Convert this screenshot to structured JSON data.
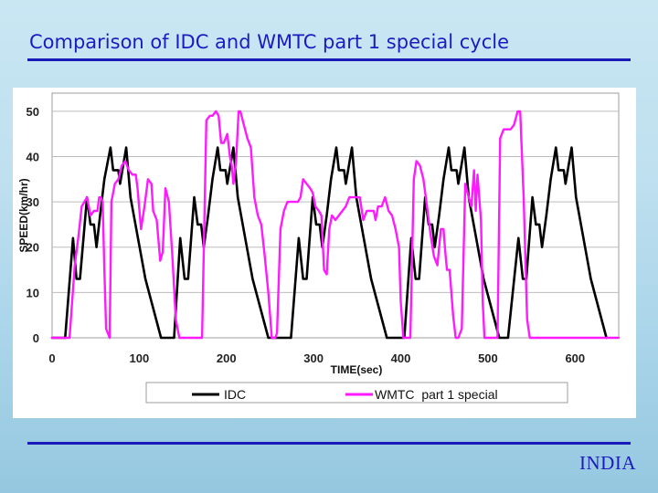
{
  "slide": {
    "title": "Comparison of IDC and WMTC part 1 special cycle",
    "footer": "INDIA"
  },
  "colors": {
    "title": "#1b1bc0",
    "idc": "#000000",
    "wmtc": "#ff1aff",
    "plot_bg": "#ffffff",
    "grid": "#bdbdbd"
  },
  "chart_data": {
    "type": "line",
    "title": "",
    "xlabel": "TIME(sec)",
    "ylabel": "SPEED(km/hr)",
    "xlim": [
      0,
      650
    ],
    "ylim": [
      0,
      54
    ],
    "xticks": [
      0,
      100,
      200,
      300,
      400,
      500,
      600
    ],
    "yticks": [
      0,
      10,
      20,
      30,
      40,
      50
    ],
    "grid": true,
    "legend_position": "bottom",
    "series": [
      {
        "name": "IDC",
        "color": "#000000",
        "points": [
          [
            0,
            0
          ],
          [
            15,
            0
          ],
          [
            24,
            22
          ],
          [
            28,
            13
          ],
          [
            32,
            13
          ],
          [
            40,
            31
          ],
          [
            44,
            25
          ],
          [
            48,
            25
          ],
          [
            51,
            20
          ],
          [
            55,
            27
          ],
          [
            60,
            35
          ],
          [
            67,
            42
          ],
          [
            70,
            37
          ],
          [
            76,
            37
          ],
          [
            78,
            34
          ],
          [
            85,
            42
          ],
          [
            90,
            31
          ],
          [
            107,
            13
          ],
          [
            125,
            0
          ],
          [
            130,
            0
          ],
          [
            140,
            0
          ],
          [
            147,
            22
          ],
          [
            152,
            13
          ],
          [
            156,
            13
          ],
          [
            163,
            31
          ],
          [
            167,
            25
          ],
          [
            171,
            25
          ],
          [
            174,
            20
          ],
          [
            179,
            27
          ],
          [
            184,
            35
          ],
          [
            190,
            42
          ],
          [
            193,
            37
          ],
          [
            199,
            37
          ],
          [
            201,
            34
          ],
          [
            208,
            42
          ],
          [
            213,
            31
          ],
          [
            230,
            13
          ],
          [
            248,
            0
          ],
          [
            262,
            0
          ],
          [
            274,
            0
          ],
          [
            283,
            22
          ],
          [
            288,
            13
          ],
          [
            292,
            13
          ],
          [
            299,
            31
          ],
          [
            303,
            25
          ],
          [
            307,
            25
          ],
          [
            310,
            20
          ],
          [
            315,
            27
          ],
          [
            320,
            35
          ],
          [
            326,
            42
          ],
          [
            329,
            37
          ],
          [
            335,
            37
          ],
          [
            337,
            34
          ],
          [
            344,
            42
          ],
          [
            349,
            31
          ],
          [
            366,
            13
          ],
          [
            384,
            0
          ],
          [
            395,
            0
          ],
          [
            404,
            0
          ],
          [
            412,
            22
          ],
          [
            417,
            13
          ],
          [
            421,
            13
          ],
          [
            428,
            31
          ],
          [
            432,
            25
          ],
          [
            436,
            25
          ],
          [
            439,
            20
          ],
          [
            444,
            27
          ],
          [
            449,
            35
          ],
          [
            455,
            42
          ],
          [
            458,
            37
          ],
          [
            464,
            37
          ],
          [
            466,
            34
          ],
          [
            473,
            42
          ],
          [
            478,
            31
          ],
          [
            495,
            13
          ],
          [
            513,
            0
          ],
          [
            517,
            0
          ],
          [
            523,
            0
          ],
          [
            535,
            22
          ],
          [
            540,
            13
          ],
          [
            544,
            13
          ],
          [
            551,
            31
          ],
          [
            555,
            25
          ],
          [
            559,
            25
          ],
          [
            562,
            20
          ],
          [
            567,
            27
          ],
          [
            572,
            35
          ],
          [
            578,
            42
          ],
          [
            581,
            37
          ],
          [
            587,
            37
          ],
          [
            589,
            34
          ],
          [
            596,
            42
          ],
          [
            601,
            31
          ],
          [
            618,
            13
          ],
          [
            636,
            0
          ]
        ]
      },
      {
        "name": "WMTC  part 1 special",
        "color": "#ff1aff",
        "points": [
          [
            0,
            0
          ],
          [
            12,
            0
          ],
          [
            20,
            0
          ],
          [
            26,
            16
          ],
          [
            30,
            22
          ],
          [
            34,
            29
          ],
          [
            40,
            31
          ],
          [
            44,
            27
          ],
          [
            48,
            28
          ],
          [
            52,
            28
          ],
          [
            54,
            31
          ],
          [
            56,
            31
          ],
          [
            58,
            30
          ],
          [
            60,
            15
          ],
          [
            62,
            2
          ],
          [
            66,
            0
          ],
          [
            68,
            30
          ],
          [
            72,
            34
          ],
          [
            76,
            35
          ],
          [
            80,
            38
          ],
          [
            84,
            39
          ],
          [
            88,
            37
          ],
          [
            92,
            36
          ],
          [
            96,
            36
          ],
          [
            98,
            33
          ],
          [
            102,
            24
          ],
          [
            106,
            29
          ],
          [
            110,
            35
          ],
          [
            114,
            34
          ],
          [
            116,
            28
          ],
          [
            120,
            26
          ],
          [
            124,
            17
          ],
          [
            127,
            19
          ],
          [
            130,
            33
          ],
          [
            134,
            30
          ],
          [
            138,
            18
          ],
          [
            142,
            4
          ],
          [
            146,
            0
          ],
          [
            150,
            0
          ],
          [
            172,
            0
          ],
          [
            177,
            48
          ],
          [
            181,
            49
          ],
          [
            184,
            49
          ],
          [
            188,
            50
          ],
          [
            191,
            49
          ],
          [
            194,
            43
          ],
          [
            197,
            43
          ],
          [
            201,
            45
          ],
          [
            204,
            40
          ],
          [
            206,
            38
          ],
          [
            208,
            34
          ],
          [
            211,
            39
          ],
          [
            214,
            50
          ],
          [
            216,
            50
          ],
          [
            220,
            47
          ],
          [
            224,
            44
          ],
          [
            228,
            42
          ],
          [
            232,
            31
          ],
          [
            236,
            27
          ],
          [
            240,
            25
          ],
          [
            244,
            18
          ],
          [
            248,
            10
          ],
          [
            252,
            0
          ],
          [
            256,
            0
          ],
          [
            258,
            1
          ],
          [
            262,
            24
          ],
          [
            266,
            28
          ],
          [
            270,
            30
          ],
          [
            274,
            30
          ],
          [
            278,
            30
          ],
          [
            282,
            30
          ],
          [
            285,
            31
          ],
          [
            288,
            35
          ],
          [
            292,
            34
          ],
          [
            296,
            33
          ],
          [
            299,
            32
          ],
          [
            302,
            29
          ],
          [
            306,
            28
          ],
          [
            309,
            27
          ],
          [
            312,
            15
          ],
          [
            315,
            14
          ],
          [
            318,
            24
          ],
          [
            321,
            27
          ],
          [
            325,
            26
          ],
          [
            329,
            27
          ],
          [
            333,
            28
          ],
          [
            337,
            29
          ],
          [
            341,
            31
          ],
          [
            345,
            31
          ],
          [
            349,
            31
          ],
          [
            353,
            31
          ],
          [
            357,
            26
          ],
          [
            361,
            28
          ],
          [
            365,
            28
          ],
          [
            369,
            28
          ],
          [
            371,
            26
          ],
          [
            374,
            29
          ],
          [
            378,
            29
          ],
          [
            382,
            31
          ],
          [
            386,
            28
          ],
          [
            390,
            27
          ],
          [
            394,
            24
          ],
          [
            398,
            20
          ],
          [
            400,
            8
          ],
          [
            403,
            0
          ],
          [
            411,
            0
          ],
          [
            415,
            35
          ],
          [
            418,
            39
          ],
          [
            422,
            38
          ],
          [
            426,
            35
          ],
          [
            430,
            29
          ],
          [
            434,
            23
          ],
          [
            438,
            18
          ],
          [
            442,
            16
          ],
          [
            446,
            24
          ],
          [
            449,
            24
          ],
          [
            451,
            19
          ],
          [
            453,
            15
          ],
          [
            456,
            15
          ],
          [
            460,
            5
          ],
          [
            463,
            0
          ],
          [
            466,
            0
          ],
          [
            470,
            2
          ],
          [
            474,
            34
          ],
          [
            478,
            31
          ],
          [
            481,
            29
          ],
          [
            484,
            37
          ],
          [
            486,
            28
          ],
          [
            488,
            36
          ],
          [
            490,
            31
          ],
          [
            492,
            26
          ],
          [
            494,
            8
          ],
          [
            496,
            0
          ],
          [
            503,
            0
          ],
          [
            511,
            0
          ],
          [
            514,
            44
          ],
          [
            518,
            46
          ],
          [
            526,
            46
          ],
          [
            530,
            47
          ],
          [
            534,
            50
          ],
          [
            537,
            50
          ],
          [
            541,
            31
          ],
          [
            545,
            4
          ],
          [
            548,
            0
          ],
          [
            650,
            0
          ]
        ]
      }
    ]
  }
}
